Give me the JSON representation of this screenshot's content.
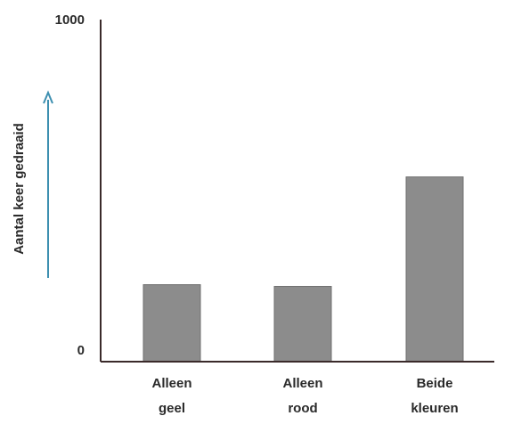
{
  "chart_data": {
    "type": "bar",
    "categories": [
      "Alleen geel",
      "Alleen rood",
      "Beide kleuren"
    ],
    "category_lines": [
      [
        "Alleen",
        "geel"
      ],
      [
        "Alleen",
        "rood"
      ],
      [
        "Beide",
        "kleuren"
      ]
    ],
    "values": [
      225,
      220,
      540
    ],
    "xlabel": "",
    "ylabel": "Aantal keer gedraaid",
    "ylim": [
      0,
      1000
    ],
    "y_ticks": [
      "0",
      "1000"
    ],
    "grid": false,
    "colors": {
      "bar": "#8c8c8c",
      "bar_edge": "#6f6f6f",
      "axis": "#3a2a2a",
      "arrow": "#3d8fb0",
      "text": "#2a2a2a"
    }
  }
}
